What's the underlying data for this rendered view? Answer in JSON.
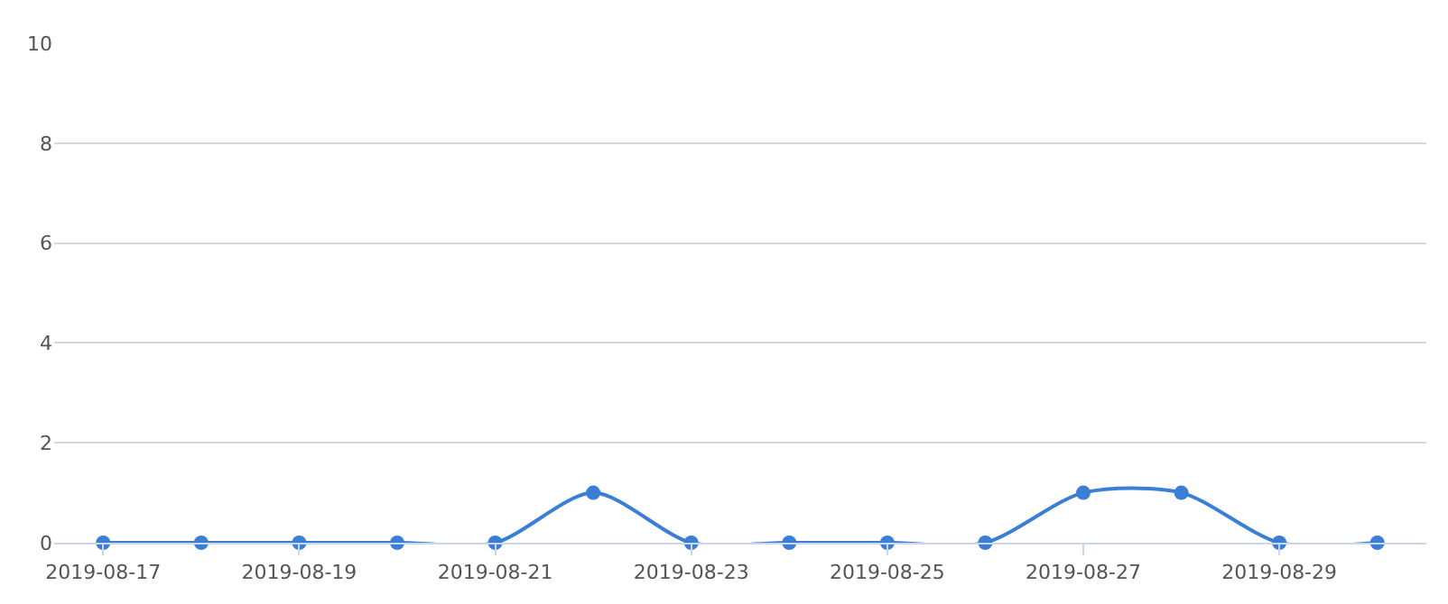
{
  "chart_data": {
    "type": "line",
    "categories": [
      "2019-08-17",
      null,
      "2019-08-19",
      null,
      "2019-08-21",
      null,
      "2019-08-23",
      null,
      "2019-08-25",
      null,
      "2019-08-27",
      null,
      "2019-08-29",
      null
    ],
    "series": [
      {
        "color": "#3a7fd5",
        "values": [
          0,
          0,
          0,
          0,
          0,
          1,
          0,
          0,
          0,
          0,
          1,
          1,
          0,
          0
        ]
      }
    ],
    "ylim": [
      0,
      10
    ],
    "yticks": [
      0,
      2,
      4,
      6,
      8,
      10
    ],
    "grid": "y",
    "marker": "circle",
    "line_style": "solid"
  }
}
